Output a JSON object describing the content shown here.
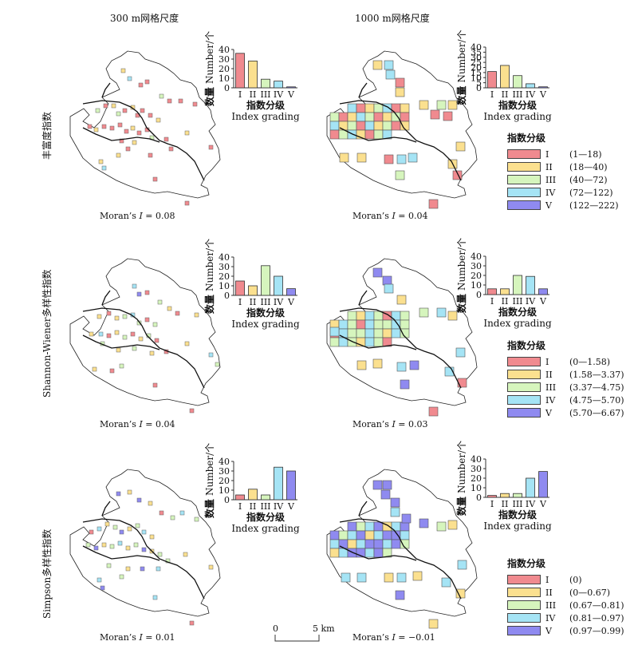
{
  "column_titles": [
    "300 m网格尺度",
    "1000 m网格尺度"
  ],
  "row_titles": [
    "丰富度指数",
    "Shannon-Wiener多样性指数",
    "Simpson多样性指数"
  ],
  "morans": [
    {
      "prefix": "Moran’s ",
      "I": "I",
      "value": " = 0.08"
    },
    {
      "prefix": "Moran’s ",
      "I": "I",
      "value": " = 0.04"
    },
    {
      "prefix": "Moran’s ",
      "I": "I",
      "value": " = 0.04"
    },
    {
      "prefix": "Moran’s ",
      "I": "I",
      "value": " = 0.03"
    },
    {
      "prefix": "Moran’s ",
      "I": "I",
      "value": " = 0.01"
    },
    {
      "prefix": "Moran’s ",
      "I": "I",
      "value": " = −0.01"
    }
  ],
  "legends": [
    {
      "title": "指数分级",
      "items": [
        {
          "roman": "I",
          "range": "(1—18)"
        },
        {
          "roman": "II",
          "range": "(18—40)"
        },
        {
          "roman": "III",
          "range": "(40—72)"
        },
        {
          "roman": "IV",
          "range": "(72—122)"
        },
        {
          "roman": "V",
          "range": "(122—222)"
        }
      ]
    },
    {
      "title": "指数分级",
      "items": [
        {
          "roman": "I",
          "range": "(0—1.58)"
        },
        {
          "roman": "II",
          "range": "(1.58—3.37)"
        },
        {
          "roman": "III",
          "range": "(3.37—4.75)"
        },
        {
          "roman": "IV",
          "range": "(4.75—5.70)"
        },
        {
          "roman": "V",
          "range": "(5.70—6.67)"
        }
      ]
    },
    {
      "title": "指数分级",
      "items": [
        {
          "roman": "I",
          "range": "(0)"
        },
        {
          "roman": "II",
          "range": "(0—0.67)"
        },
        {
          "roman": "III",
          "range": "(0.67—0.81)"
        },
        {
          "roman": "IV",
          "range": "(0.81—0.97)"
        },
        {
          "roman": "V",
          "range": "(0.97—0.99)"
        }
      ]
    }
  ],
  "scale_bar": {
    "start": "0",
    "end": "5 km"
  },
  "colors": {
    "I": "#f08a8f",
    "II": "#fbe08f",
    "III": "#d6f5bd",
    "IV": "#a5e4f5",
    "V": "#8f8af0"
  },
  "chart_data": [
    {
      "type": "bar",
      "panel": "丰富度指数 / 300 m网格尺度",
      "categories": [
        "I",
        "II",
        "III",
        "IV",
        "V"
      ],
      "values": [
        36,
        28,
        9,
        7,
        1
      ],
      "ylabel": "数量 Number/个",
      "xlabel": "指数分级 Index grading",
      "ylim": [
        0,
        40
      ],
      "yticks": [
        0,
        10,
        20,
        30,
        40
      ]
    },
    {
      "type": "bar",
      "panel": "丰富度指数 / 1000 m网格尺度",
      "categories": [
        "I",
        "II",
        "III",
        "IV",
        "V"
      ],
      "values": [
        16,
        22,
        12,
        4,
        1
      ],
      "ylabel": "数量 Number/个",
      "xlabel": "指数分级 Index grading",
      "ylim": [
        0,
        40
      ],
      "yticks": [
        0,
        5,
        10,
        15,
        20,
        25,
        30,
        35,
        40
      ]
    },
    {
      "type": "bar",
      "panel": "Shannon-Wiener多样性指数 / 300 m网格尺度",
      "categories": [
        "I",
        "II",
        "III",
        "IV",
        "V"
      ],
      "values": [
        15,
        10,
        31,
        20,
        7
      ],
      "ylabel": "数量 Number/个",
      "xlabel": "指数分级 Index grading",
      "ylim": [
        0,
        40
      ],
      "yticks": [
        0,
        10,
        20,
        30,
        40
      ]
    },
    {
      "type": "bar",
      "panel": "Shannon-Wiener多样性指数 / 1000 m网格尺度",
      "categories": [
        "I",
        "II",
        "III",
        "IV",
        "V"
      ],
      "values": [
        6,
        6,
        20,
        19,
        6
      ],
      "ylabel": "数量 Number/个",
      "xlabel": "指数分级 Index grading",
      "ylim": [
        0,
        40
      ],
      "yticks": [
        0,
        10,
        20,
        30,
        40
      ]
    },
    {
      "type": "bar",
      "panel": "Simpson多样性指数 / 300 m网格尺度",
      "categories": [
        "I",
        "II",
        "III",
        "IV",
        "V"
      ],
      "values": [
        5,
        11,
        5,
        34,
        30
      ],
      "ylabel": "数量 Number/个",
      "xlabel": "指数分级 Index grading",
      "ylim": [
        0,
        40
      ],
      "yticks": [
        0,
        10,
        20,
        30,
        40
      ]
    },
    {
      "type": "bar",
      "panel": "Simpson多样性指数 / 1000 m网格尺度",
      "categories": [
        "I",
        "II",
        "III",
        "IV",
        "V"
      ],
      "values": [
        2,
        4,
        4,
        20,
        27
      ],
      "ylabel": "数量 Number/个",
      "xlabel": "指数分级 Index grading",
      "ylim": [
        0,
        40
      ],
      "yticks": [
        0,
        10,
        20,
        30,
        40
      ]
    }
  ]
}
